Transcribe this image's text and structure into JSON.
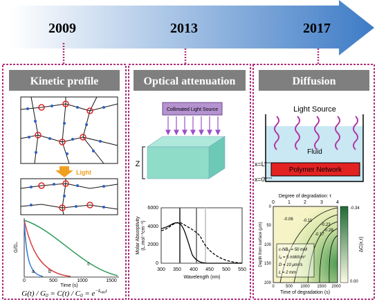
{
  "timeline": {
    "years": [
      "2009",
      "2013",
      "2017"
    ]
  },
  "panels": [
    {
      "title": "Kinetic profile",
      "arrow_label": "Light",
      "plot": {
        "y_label": "G/G₀",
        "x_label": "Time (s)",
        "x_ticks": [
          "0",
          "500",
          "1000",
          "1500"
        ],
        "curve_labels": [
          "a",
          "b",
          "c"
        ]
      },
      "equation": [
        "G(t) / G",
        "0",
        " = C(t) / C",
        "0",
        " = e",
        "−k",
        "app",
        "t"
      ]
    },
    {
      "title": "Optical attenuation",
      "source_label": "Collimated Light Source",
      "depth_label": "Z",
      "plot": {
        "y_label": [
          "Molar Absorptivity",
          "(L.mol⁻¹cm⁻¹)"
        ],
        "x_label": "Wavelength (nm)",
        "y_ticks": [
          "6000",
          "4000",
          "2000",
          "0"
        ],
        "x_ticks": [
          "300",
          "350",
          "400",
          "450",
          "500",
          "550"
        ]
      }
    },
    {
      "title": "Diffusion",
      "source_label": "Light Source",
      "fluid_label": "Fluid",
      "network_label": "Polymer Network",
      "boundary_labels": [
        "x=L",
        "x=0"
      ],
      "plot": {
        "top_label": "Degree of degradation: τ",
        "top_ticks": [
          "0",
          "1",
          "2",
          "3",
          "4"
        ],
        "y_label": "Depth from surface (μm)",
        "y_ticks": [
          "0",
          "50",
          "100",
          "150",
          "200"
        ],
        "x_label": "Time of degradation (s)",
        "x_ticks": [
          "0",
          "500",
          "1000",
          "1500",
          "2000"
        ],
        "contour_labels": [
          "-0.06",
          "-0.11",
          "-0.23",
          "-0.28",
          "-0.17"
        ],
        "colorbar_label": "ΔC(x,τ)",
        "colorbar_ticks": [
          "-0.34",
          "0.00"
        ],
        "legend": [
          "c-NB₀ = 50 mM",
          "I₀ = 5 mW/cm²",
          "D = 10 μm²/s",
          "L = 2 mm"
        ]
      }
    }
  ]
}
